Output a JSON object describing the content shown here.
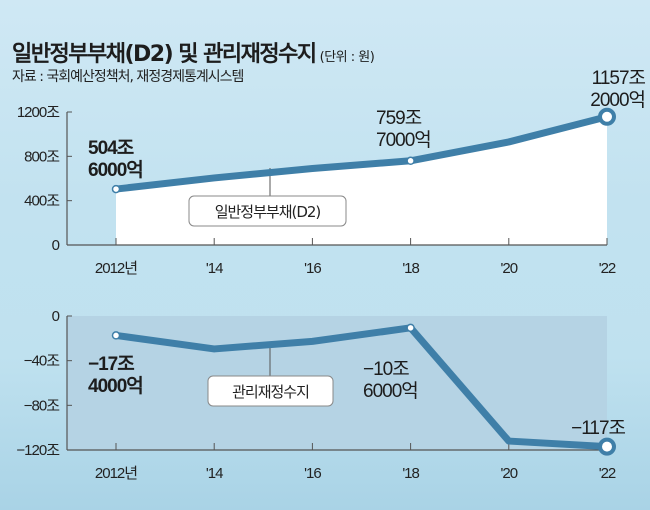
{
  "header": {
    "title": "일반정부부채(D2) 및 관리재정수지",
    "unit": "(단위 : 원)",
    "source": "자료 : 국회예산정책처, 재정경제통계시스템"
  },
  "colors": {
    "line": "#3f7fa8",
    "top_fill": "#ffffff",
    "bottom_plot_bg": "#b5d3e4",
    "axis": "#555555"
  },
  "chart_data": [
    {
      "type": "area",
      "title": "일반정부부채(D2)",
      "legend": "일반정부부채(D2)",
      "x": [
        2012,
        2014,
        2016,
        2018,
        2020,
        2022
      ],
      "tick_labels_x": [
        "2012년",
        "'14",
        "'16",
        "'18",
        "'20",
        "'22"
      ],
      "values": [
        504.6,
        605,
        690,
        759.7,
        930,
        1157.2
      ],
      "ylim": [
        0,
        1200
      ],
      "yticks": [
        0,
        400,
        800,
        1200
      ],
      "tick_labels_y": [
        "0",
        "400조",
        "800조",
        "1200조"
      ],
      "annotations": [
        {
          "x": 2012,
          "lines": [
            "504조",
            "6000억"
          ],
          "bold": true
        },
        {
          "x": 2018,
          "lines": [
            "759조",
            "7000억"
          ],
          "bold": false
        },
        {
          "x": 2022,
          "lines": [
            "1157조",
            "2000억"
          ],
          "bold": false
        }
      ]
    },
    {
      "type": "line",
      "title": "관리재정수지",
      "legend": "관리재정수지",
      "x": [
        2012,
        2014,
        2016,
        2018,
        2020,
        2022
      ],
      "tick_labels_x": [
        "2012년",
        "'14",
        "'16",
        "'18",
        "'20",
        "'22"
      ],
      "values": [
        -17.4,
        -29.5,
        -22.7,
        -10.6,
        -112,
        -117
      ],
      "ylim": [
        -120,
        0
      ],
      "yticks": [
        0,
        -40,
        -80,
        -120
      ],
      "tick_labels_y": [
        "0",
        "−40조",
        "−80조",
        "−120조"
      ],
      "annotations": [
        {
          "x": 2012,
          "lines": [
            "−17조",
            "4000억"
          ],
          "bold": true
        },
        {
          "x": 2018,
          "lines": [
            "−10조",
            "6000억"
          ],
          "bold": false
        },
        {
          "x": 2022,
          "lines": [
            "−117조"
          ],
          "bold": false
        }
      ]
    }
  ]
}
